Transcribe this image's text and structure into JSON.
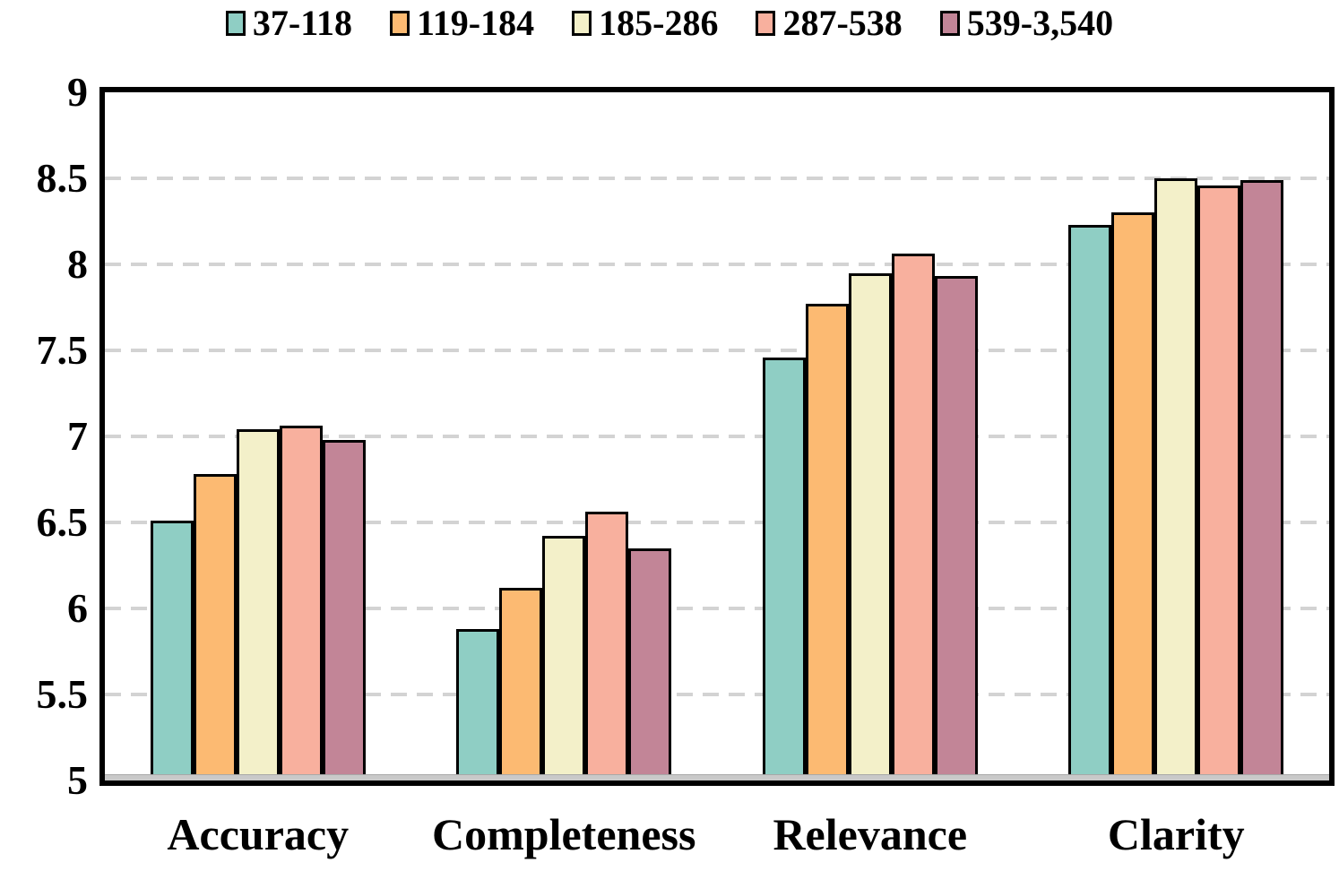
{
  "chart_data": {
    "type": "bar",
    "title": "",
    "categories": [
      "Accuracy",
      "Completeness",
      "Relevance",
      "Clarity"
    ],
    "series": [
      {
        "name": "37-118",
        "color": "#8FCEC4",
        "values": [
          6.51,
          5.88,
          7.46,
          8.23
        ]
      },
      {
        "name": "119-184",
        "color": "#FCBA72",
        "values": [
          6.78,
          6.12,
          7.77,
          8.3
        ]
      },
      {
        "name": "185-286",
        "color": "#F3F0C9",
        "values": [
          7.04,
          6.42,
          7.95,
          8.5
        ]
      },
      {
        "name": "287-538",
        "color": "#F8B09E",
        "values": [
          7.06,
          6.56,
          8.06,
          8.46
        ]
      },
      {
        "name": "539-3,540",
        "color": "#C28597",
        "values": [
          6.98,
          6.35,
          7.93,
          8.49
        ]
      }
    ],
    "ylim": [
      5,
      9
    ],
    "ytick_step": 0.5,
    "ytick_values": [
      9,
      8.5,
      8,
      7.5,
      7,
      6.5,
      6,
      5.5,
      5
    ],
    "ytick_labels": [
      "9",
      "8.5",
      "8",
      "7.5",
      "7",
      "6.5",
      "6",
      "5.5",
      "5"
    ],
    "xlabel": "",
    "ylabel": "",
    "grid": "horizontal dashed",
    "legend_position": "top"
  },
  "style": {
    "background": "#FFFFFF",
    "text_color": "#000000",
    "frame_color": "#000000",
    "bar_border_color": "#000000",
    "grid_color": "#D3D3D3",
    "baseline_color": "#C9C9C9"
  }
}
